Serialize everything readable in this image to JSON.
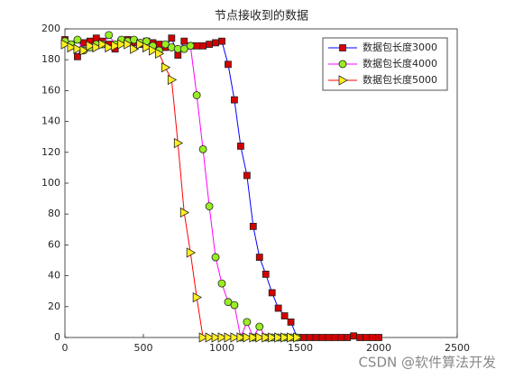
{
  "chart_data": {
    "type": "line",
    "title": "节点接收到的数据",
    "xlim": [
      0,
      2500
    ],
    "xticks": [
      0,
      500,
      1000,
      1500,
      2000,
      2500
    ],
    "ylim": [
      0,
      200
    ],
    "yticks": [
      0,
      20,
      40,
      60,
      80,
      100,
      120,
      140,
      160,
      180,
      200
    ],
    "grid": false,
    "legend": "top-right",
    "series": [
      {
        "name": "数据包长度3000",
        "color": "#0000ff",
        "marker": "square",
        "marker_color": "#d40000",
        "x": [
          0,
          40,
          80,
          120,
          160,
          200,
          240,
          280,
          320,
          360,
          400,
          440,
          480,
          520,
          560,
          600,
          640,
          680,
          720,
          760,
          800,
          840,
          880,
          920,
          960,
          1000,
          1040,
          1080,
          1120,
          1160,
          1200,
          1240,
          1280,
          1320,
          1360,
          1400,
          1440,
          1480,
          1520,
          1560,
          1600,
          1640,
          1680,
          1720,
          1760,
          1800,
          1840,
          1880,
          1920,
          1960,
          2000
        ],
        "values": [
          193,
          190,
          182,
          191,
          192,
          194,
          192,
          190,
          187,
          192,
          193,
          191,
          190,
          192,
          191,
          190,
          188,
          194,
          183,
          192,
          189,
          189,
          189,
          190,
          191,
          192,
          177,
          154,
          124,
          105,
          72,
          52,
          41,
          29,
          19,
          14,
          10,
          0,
          0,
          0,
          0,
          0,
          0,
          0,
          0,
          0,
          1,
          0,
          0,
          0,
          0
        ]
      },
      {
        "name": "数据包长度4000",
        "color": "#ff00ff",
        "marker": "circle",
        "marker_color": "#99ee22",
        "x": [
          0,
          40,
          80,
          120,
          160,
          200,
          240,
          280,
          320,
          360,
          400,
          440,
          480,
          520,
          560,
          600,
          640,
          680,
          720,
          760,
          800,
          840,
          880,
          920,
          960,
          1000,
          1040,
          1080,
          1120,
          1160,
          1200,
          1240,
          1280,
          1320,
          1360,
          1400,
          1440,
          1480
        ],
        "values": [
          192,
          190,
          193,
          186,
          188,
          190,
          190,
          196,
          190,
          193,
          192,
          193,
          191,
          192,
          189,
          186,
          190,
          188,
          187,
          187,
          189,
          157,
          122,
          85,
          52,
          35,
          23,
          21,
          0,
          10,
          0,
          7,
          0,
          0,
          0,
          0,
          0,
          0
        ]
      },
      {
        "name": "数据包长度5000",
        "color": "#ff0000",
        "marker": "triangle-right",
        "marker_color": "#ffee22",
        "x": [
          0,
          40,
          80,
          120,
          160,
          200,
          240,
          280,
          320,
          360,
          400,
          440,
          480,
          520,
          560,
          600,
          640,
          680,
          720,
          760,
          800,
          840,
          880,
          920,
          960,
          1000,
          1040,
          1080,
          1120,
          1160,
          1200,
          1240,
          1280,
          1320,
          1360,
          1400,
          1440,
          1480
        ],
        "values": [
          190,
          188,
          187,
          186,
          189,
          188,
          190,
          188,
          189,
          190,
          190,
          187,
          190,
          188,
          186,
          184,
          175,
          167,
          126,
          81,
          55,
          26,
          0,
          0,
          0,
          0,
          0,
          0,
          0,
          0,
          0,
          0,
          0,
          0,
          0,
          0,
          0,
          0
        ]
      }
    ],
    "watermark": "CSDN @软件算法开发"
  }
}
